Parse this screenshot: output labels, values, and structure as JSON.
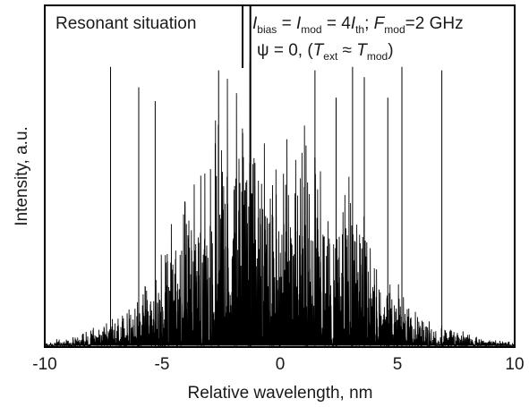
{
  "chart_data": {
    "type": "line",
    "xlabel": "Relative wavelength, nm",
    "ylabel": "Intensity, a.u.",
    "xlim": [
      -10,
      10
    ],
    "ylim": [
      0,
      1
    ],
    "x_ticks": [
      -10,
      -5,
      0,
      5,
      10
    ],
    "x_tick_labels": [
      "-10",
      "-5",
      "0",
      "5",
      "10"
    ],
    "grid": false,
    "legend": "none",
    "line_color": "#000000",
    "annotations": {
      "left_panel_text": "Resonant situation",
      "param_line1": {
        "I1": "I",
        "bias": "bias",
        "eq1": " = ",
        "I2": "I",
        "mod1": "mod",
        "eq2": " = 4",
        "I3": "I",
        "th": "th",
        "sep": "; ",
        "F": "F",
        "mod2": "mod",
        "eq3": "=2 GHz"
      },
      "param_line2": {
        "psi": "ψ = 0,  (",
        "T1": "T",
        "ext": "ext",
        "approx": " ≈ ",
        "T2": "T",
        "mod": "mod",
        "close": ")"
      }
    },
    "tall_lines": [
      {
        "x": -7.2,
        "y": 0.82
      },
      {
        "x": -6.0,
        "y": 0.76
      },
      {
        "x": -5.3,
        "y": 0.72
      },
      {
        "x": -2.6,
        "y": 0.81
      },
      {
        "x": -1.25,
        "y": 1.0
      },
      {
        "x": 1.5,
        "y": 0.81
      },
      {
        "x": 2.4,
        "y": 0.73
      },
      {
        "x": 3.1,
        "y": 0.82
      },
      {
        "x": 3.6,
        "y": 0.79
      },
      {
        "x": 4.6,
        "y": 0.73
      },
      {
        "x": 5.2,
        "y": 0.82
      },
      {
        "x": 6.9,
        "y": 0.81
      }
    ],
    "envelope": [
      {
        "x": -10.0,
        "y": 0.01
      },
      {
        "x": -9.0,
        "y": 0.02
      },
      {
        "x": -8.0,
        "y": 0.04
      },
      {
        "x": -7.0,
        "y": 0.07
      },
      {
        "x": -6.0,
        "y": 0.12
      },
      {
        "x": -5.0,
        "y": 0.22
      },
      {
        "x": -4.0,
        "y": 0.42
      },
      {
        "x": -3.0,
        "y": 0.52
      },
      {
        "x": -2.0,
        "y": 0.62
      },
      {
        "x": -1.0,
        "y": 0.6
      },
      {
        "x": 0.0,
        "y": 0.45
      },
      {
        "x": 1.0,
        "y": 0.5
      },
      {
        "x": 2.0,
        "y": 0.45
      },
      {
        "x": 3.0,
        "y": 0.42
      },
      {
        "x": 4.0,
        "y": 0.28
      },
      {
        "x": 5.0,
        "y": 0.15
      },
      {
        "x": 6.0,
        "y": 0.08
      },
      {
        "x": 7.0,
        "y": 0.05
      },
      {
        "x": 8.0,
        "y": 0.03
      },
      {
        "x": 9.0,
        "y": 0.015
      },
      {
        "x": 10.0,
        "y": 0.01
      }
    ]
  }
}
